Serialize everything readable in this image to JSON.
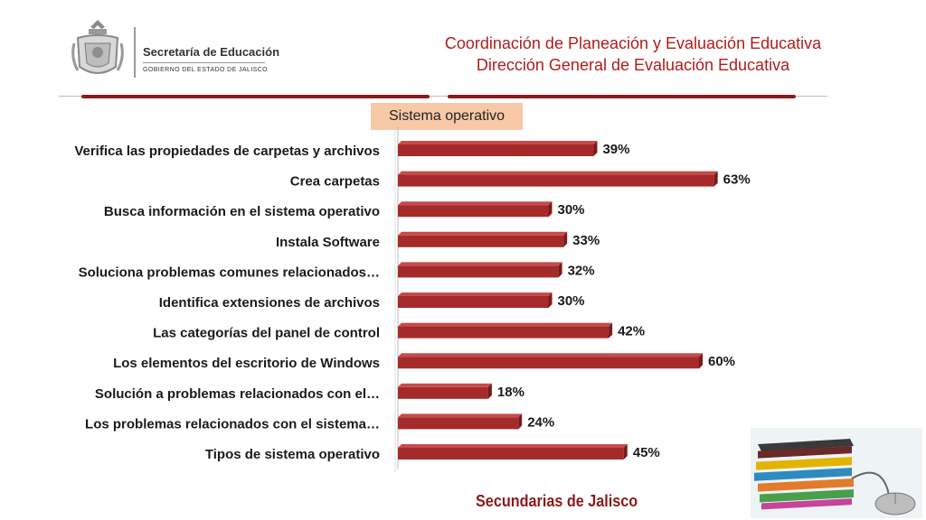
{
  "header": {
    "logo_line1": "Secretaría de Educación",
    "logo_line2": "GOBIERNO DEL ESTADO DE JALISCO",
    "title_line1": "Coordinación de Planeación y Evaluación Educativa",
    "title_line2": "Dirección General de Evaluación Educativa"
  },
  "footer": {
    "caption": "Secundarias de Jalisco"
  },
  "colors": {
    "bar": "#a52a2a",
    "bar_top": "#c64b4b",
    "bar_side": "#7a1a1a",
    "title": "#b11c1c",
    "label_bg": "#f7c9a6"
  },
  "chart_data": {
    "type": "bar",
    "orientation": "horizontal",
    "title": "Sistema operativo",
    "categories": [
      "Verifica las propiedades de carpetas y archivos",
      "Crea carpetas",
      "Busca información en el sistema operativo",
      "Instala Software",
      "Soluciona problemas comunes relacionados…",
      "Identifica extensiones de archivos",
      "Las categorías del panel de control",
      "Los elementos del escritorio de Windows",
      "Solución a problemas relacionados con el…",
      "Los problemas relacionados con el sistema…",
      "Tipos de sistema operativo"
    ],
    "values": [
      39,
      63,
      30,
      33,
      32,
      30,
      42,
      60,
      18,
      24,
      45
    ],
    "value_labels": [
      "39%",
      "63%",
      "30%",
      "33%",
      "32%",
      "30%",
      "42%",
      "60%",
      "18%",
      "24%",
      "45%"
    ],
    "xlim": [
      0,
      100
    ],
    "grid": false,
    "legend": "none"
  }
}
